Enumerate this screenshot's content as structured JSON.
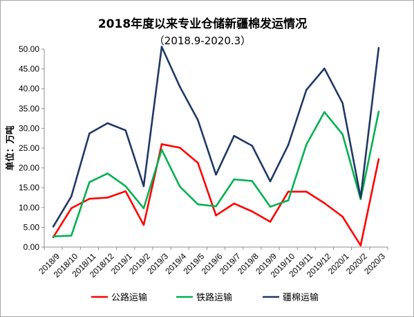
{
  "chart_data": {
    "type": "line",
    "title": "2018年度以来专业仓储新疆棉发运情况",
    "subtitle": "（2018.9-2020.3）",
    "ylabel": "单位：万吨",
    "xlabel": "",
    "ylim": [
      0,
      50
    ],
    "yticks": [
      "0.00",
      "5.00",
      "10.00",
      "15.00",
      "20.00",
      "25.00",
      "30.00",
      "35.00",
      "40.00",
      "45.00",
      "50.00"
    ],
    "categories": [
      "2018/9",
      "2018/10",
      "2018/11",
      "2018/12",
      "2019/1",
      "2019/2",
      "2019/3",
      "2019/4",
      "2019/5",
      "2019/6",
      "2019/7",
      "2019/8",
      "2019/9",
      "2019/10",
      "2019/11",
      "2019/12",
      "2020/1",
      "2020/2",
      "2020/3"
    ],
    "grid": false,
    "legend_position": "bottom",
    "series": [
      {
        "name": "公路运输",
        "color": "#ff0000",
        "values": [
          2.5,
          9.8,
          12.2,
          12.5,
          14.1,
          5.6,
          26.0,
          25.1,
          21.3,
          8.0,
          11.0,
          9.0,
          6.4,
          14.0,
          14.0,
          11.1,
          7.7,
          0.4,
          22.2
        ]
      },
      {
        "name": "铁路运输",
        "color": "#00b050",
        "values": [
          2.7,
          2.9,
          16.4,
          18.6,
          15.4,
          9.8,
          24.6,
          15.3,
          10.8,
          10.3,
          17.1,
          16.7,
          10.2,
          11.8,
          25.9,
          34.1,
          28.5,
          12.1,
          34.2
        ]
      },
      {
        "name": "疆棉运输",
        "color": "#1f3864",
        "values": [
          5.2,
          12.8,
          28.7,
          31.3,
          29.5,
          15.4,
          50.6,
          40.5,
          32.1,
          18.3,
          28.1,
          25.6,
          16.6,
          25.8,
          39.7,
          45.1,
          36.4,
          12.5,
          50.3
        ]
      }
    ]
  }
}
